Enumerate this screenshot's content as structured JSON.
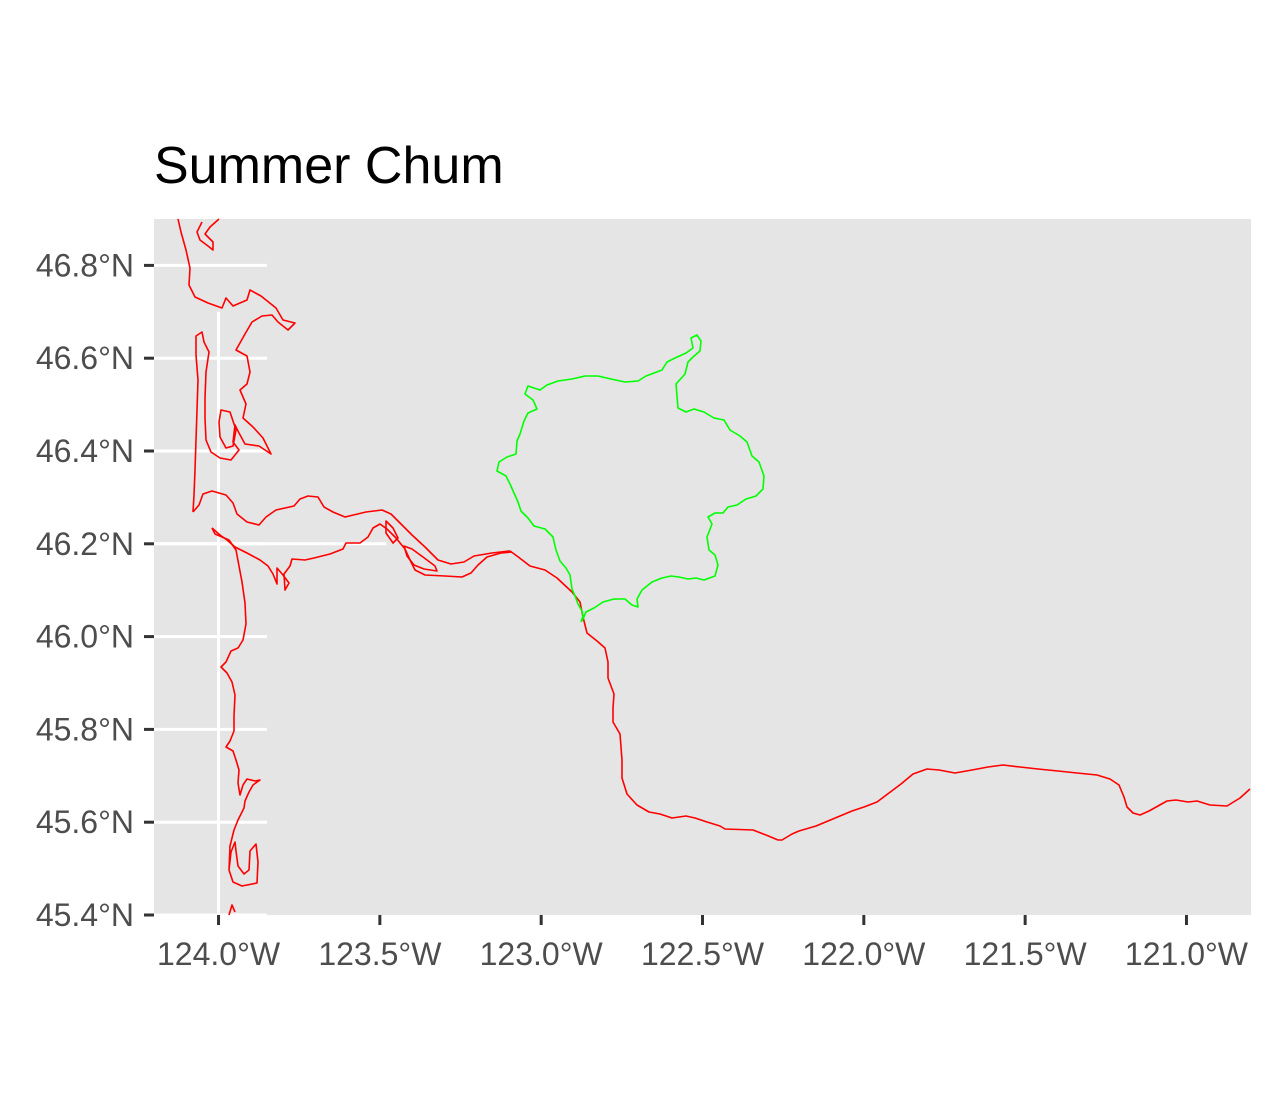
{
  "title": "Summer Chum",
  "colors": {
    "panel": "#e5e5e5",
    "grid": "#ffffff",
    "tick_text": "#4d4d4d",
    "shoreline": "#ff0000",
    "region_outline": "#00ff00"
  },
  "axes": {
    "x_range": [
      -124.2,
      -120.8
    ],
    "y_range": [
      45.4,
      46.9
    ],
    "x_ticks": [
      {
        "value": -124.0,
        "label": "124.0°W"
      },
      {
        "value": -123.5,
        "label": "123.5°W"
      },
      {
        "value": -123.0,
        "label": "123.0°W"
      },
      {
        "value": -122.5,
        "label": "122.5°W"
      },
      {
        "value": -122.0,
        "label": "122.0°W"
      },
      {
        "value": -121.5,
        "label": "121.5°W"
      },
      {
        "value": -121.0,
        "label": "121.0°W"
      }
    ],
    "y_ticks": [
      {
        "value": 46.8,
        "label": "46.8°N"
      },
      {
        "value": 46.6,
        "label": "46.6°N"
      },
      {
        "value": 46.4,
        "label": "46.4°N"
      },
      {
        "value": 46.2,
        "label": "46.2°N"
      },
      {
        "value": 46.0,
        "label": "46.0°N"
      },
      {
        "value": 45.8,
        "label": "45.8°N"
      },
      {
        "value": 45.6,
        "label": "45.6°N"
      },
      {
        "value": 45.4,
        "label": "45.4°N"
      }
    ]
  },
  "layers": [
    {
      "name": "shoreline",
      "color": "#ff0000"
    },
    {
      "name": "region-outline",
      "color": "#00ff00"
    }
  ]
}
